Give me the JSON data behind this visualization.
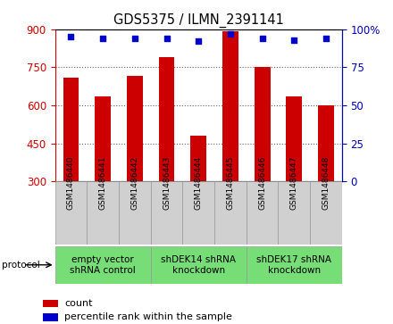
{
  "title": "GDS5375 / ILMN_2391141",
  "samples": [
    "GSM1486440",
    "GSM1486441",
    "GSM1486442",
    "GSM1486443",
    "GSM1486444",
    "GSM1486445",
    "GSM1486446",
    "GSM1486447",
    "GSM1486448"
  ],
  "counts": [
    710,
    635,
    715,
    790,
    480,
    893,
    750,
    635,
    600
  ],
  "percentiles": [
    95,
    94,
    94,
    94,
    92,
    97,
    94,
    93,
    94
  ],
  "groups": [
    {
      "label": "empty vector\nshRNA control",
      "start": 0,
      "end": 3
    },
    {
      "label": "shDEK14 shRNA\nknockdown",
      "start": 3,
      "end": 6
    },
    {
      "label": "shDEK17 shRNA\nknockdown",
      "start": 6,
      "end": 9
    }
  ],
  "protocol_label": "protocol",
  "ylim_left": [
    300,
    900
  ],
  "ylim_right": [
    0,
    100
  ],
  "yticks_left": [
    300,
    450,
    600,
    750,
    900
  ],
  "yticks_right": [
    0,
    25,
    50,
    75,
    100
  ],
  "bar_color": "#CC0000",
  "dot_color": "#0000CC",
  "bar_width": 0.5,
  "left_tick_color": "#CC0000",
  "right_tick_color": "#0000BB",
  "green_color": "#77DD77",
  "gray_color": "#D0D0D0"
}
